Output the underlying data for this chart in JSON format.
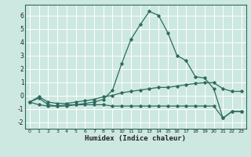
{
  "xlabel": "Humidex (Indice chaleur)",
  "background_color": "#cde8e0",
  "line_color": "#2d6b5e",
  "grid_color": "#ffffff",
  "xlim": [
    -0.5,
    23.5
  ],
  "ylim": [
    -2.5,
    6.8
  ],
  "yticks": [
    -2,
    -1,
    0,
    1,
    2,
    3,
    4,
    5,
    6
  ],
  "xticks": [
    0,
    1,
    2,
    3,
    4,
    5,
    6,
    7,
    8,
    9,
    10,
    11,
    12,
    13,
    14,
    15,
    16,
    17,
    18,
    19,
    20,
    21,
    22,
    23
  ],
  "line1_x": [
    0,
    1,
    2,
    3,
    4,
    5,
    6,
    7,
    8,
    9,
    10,
    11,
    12,
    13,
    14,
    15,
    16,
    17,
    18,
    19,
    20,
    21,
    22,
    23
  ],
  "line1_y": [
    -0.5,
    -0.2,
    -0.7,
    -0.8,
    -0.8,
    -0.7,
    -0.6,
    -0.5,
    -0.3,
    0.4,
    2.4,
    4.2,
    5.3,
    6.3,
    6.0,
    4.7,
    3.0,
    2.6,
    1.4,
    1.3,
    0.5,
    -1.7,
    -1.2,
    -1.2
  ],
  "line2_x": [
    0,
    1,
    2,
    3,
    4,
    5,
    6,
    7,
    8,
    9,
    10,
    11,
    12,
    13,
    14,
    15,
    16,
    17,
    18,
    19,
    20,
    21,
    22,
    23
  ],
  "line2_y": [
    -0.5,
    -0.1,
    -0.5,
    -0.6,
    -0.6,
    -0.5,
    -0.4,
    -0.3,
    -0.1,
    0.0,
    0.2,
    0.3,
    0.4,
    0.5,
    0.6,
    0.6,
    0.7,
    0.8,
    0.9,
    0.95,
    0.95,
    0.5,
    0.3,
    0.3
  ],
  "line3_x": [
    0,
    1,
    2,
    3,
    4,
    5,
    6,
    7,
    8,
    9,
    10,
    11,
    12,
    13,
    14,
    15,
    16,
    17,
    18,
    19,
    20,
    21,
    22,
    23
  ],
  "line3_y": [
    -0.5,
    -0.7,
    -0.8,
    -0.8,
    -0.7,
    -0.7,
    -0.7,
    -0.7,
    -0.7,
    -0.8,
    -0.8,
    -0.8,
    -0.8,
    -0.8,
    -0.8,
    -0.8,
    -0.8,
    -0.8,
    -0.8,
    -0.8,
    -0.8,
    -1.7,
    -1.2,
    -1.2
  ]
}
